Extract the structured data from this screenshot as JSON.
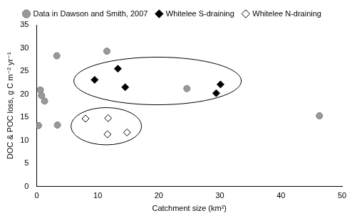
{
  "chart_data": {
    "type": "scatter",
    "x_label": "Catchment size (km²)",
    "y_label": "DOC & POC loss, g C m⁻² yr⁻¹",
    "xlim": [
      0,
      50
    ],
    "xticks": [
      0,
      10,
      20,
      30,
      40,
      50
    ],
    "ylim": [
      0,
      35
    ],
    "yticks": [
      0,
      5,
      10,
      15,
      20,
      25,
      30,
      35
    ],
    "grid": false,
    "legend": "top",
    "series": [
      {
        "name": "Data in Dawson and Smith, 2007",
        "color": "#999999",
        "marker": "circle",
        "x": [
          0.3,
          0.6,
          0.8,
          1.3,
          3.3,
          3.4,
          11.5,
          24.6,
          46.3
        ],
        "values": [
          13.2,
          20.9,
          19.7,
          18.5,
          28.3,
          13.3,
          29.3,
          21.2,
          15.3
        ]
      },
      {
        "name": "Whitelee S-draining",
        "color": "#000000",
        "marker": "diamond",
        "x": [
          9.5,
          13.3,
          14.5,
          29.4,
          30.1
        ],
        "values": [
          23.1,
          25.5,
          21.5,
          20.2,
          22.1
        ]
      },
      {
        "name": "Whitelee N-draining",
        "color": "#000000",
        "marker": "diamond-open",
        "x": [
          8.0,
          11.7,
          11.6,
          14.8
        ],
        "values": [
          14.7,
          14.8,
          11.3,
          11.7
        ]
      }
    ]
  }
}
